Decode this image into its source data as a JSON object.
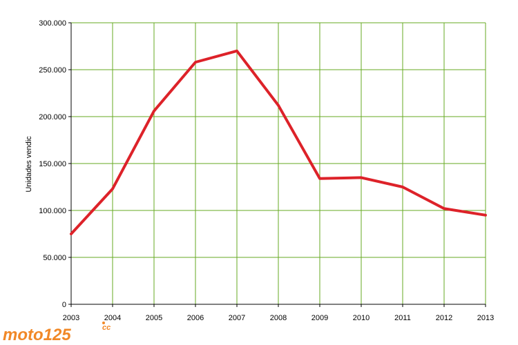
{
  "chart_data": {
    "type": "line",
    "title": "",
    "xlabel": "",
    "ylabel": "Unidades vendic",
    "x": [
      "2003",
      "2004",
      "2005",
      "2006",
      "2007",
      "2008",
      "2009",
      "2010",
      "2011",
      "2012",
      "2013"
    ],
    "series": [
      {
        "values": [
          75000,
          123000,
          206000,
          258000,
          270000,
          212000,
          134000,
          135000,
          125000,
          102000,
          95000
        ]
      }
    ],
    "ylim": [
      0,
      300000
    ],
    "yticks": [
      0,
      50000,
      100000,
      150000,
      200000,
      250000,
      300000
    ],
    "ytick_labels": [
      "0",
      "50.000",
      "100.000",
      "150.000",
      "200.000",
      "250.000",
      "300.000"
    ],
    "grid": true,
    "legend": "none",
    "colors": {
      "line": "#dd2229",
      "grid": "#66aa22",
      "axis": "#000000"
    }
  },
  "watermark": {
    "text": "moto125cc",
    "color": "#f07c10"
  }
}
